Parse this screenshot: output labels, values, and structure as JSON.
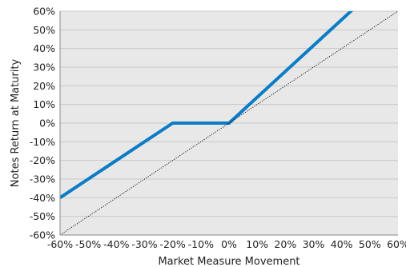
{
  "chart_data": {
    "type": "line",
    "xlabel": "Market Measure Movement",
    "ylabel": "Notes Return at Maturity",
    "xlim": [
      -60,
      60
    ],
    "ylim": [
      -60,
      60
    ],
    "x_ticks": [
      "-60%",
      "-50%",
      "-40%",
      "-30%",
      "-20%",
      "-10%",
      "0%",
      "10%",
      "20%",
      "30%",
      "40%",
      "50%",
      "60%"
    ],
    "y_ticks": [
      "60%",
      "50%",
      "40%",
      "30%",
      "20%",
      "10%",
      "0%",
      "-10%",
      "-20%",
      "-30%",
      "-40%",
      "-50%",
      "-60%"
    ],
    "grid": true,
    "colors": {
      "plot_background": "#e8e8e8",
      "grid": "#c8c8c8",
      "payoff": "#0a7cc6",
      "reference": "#000000"
    },
    "series": [
      {
        "style": "solid-thick",
        "x": [
          -60,
          -20,
          0,
          44
        ],
        "y": [
          -40,
          0,
          0,
          61
        ]
      },
      {
        "style": "dotted-thin",
        "x": [
          -60,
          60
        ],
        "y": [
          -60,
          60
        ]
      }
    ]
  }
}
